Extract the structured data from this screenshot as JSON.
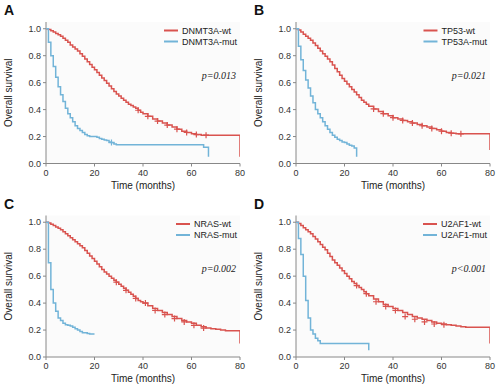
{
  "chart_data": [
    {
      "type": "step",
      "title": "A",
      "annotations": [
        "p=0.013"
      ],
      "xlabel": "Time (months)",
      "ylabel": "Overall survival",
      "xlim": [
        0,
        80
      ],
      "ylim": [
        0,
        1.05
      ],
      "xticks": [
        0,
        20,
        40,
        60,
        80
      ],
      "yticks": [
        {
          "value": 0.0,
          "label": "0.0"
        },
        0.2,
        0.4,
        0.6,
        0.8,
        {
          "value": 1.0,
          "label": "1.0"
        }
      ],
      "grid": false,
      "legend": "upper right",
      "series": [
        {
          "name": "DNMT3A-wt",
          "color": "#d9534f",
          "x": [
            0,
            1,
            2,
            3,
            4,
            5,
            6,
            7,
            8,
            9,
            10,
            11,
            12,
            13,
            14,
            15,
            16,
            17,
            18,
            19,
            20,
            21,
            22,
            23,
            24,
            25,
            26,
            27,
            28,
            29,
            30,
            31,
            32,
            33,
            34,
            35,
            36,
            37,
            38,
            39,
            40,
            42,
            44,
            46,
            48,
            50,
            52,
            54,
            56,
            58,
            60,
            62,
            64,
            66,
            68,
            70,
            72,
            74,
            76,
            78,
            80
          ],
          "values": [
            1.0,
            0.995,
            0.985,
            0.975,
            0.965,
            0.955,
            0.945,
            0.93,
            0.915,
            0.9,
            0.88,
            0.865,
            0.85,
            0.835,
            0.815,
            0.795,
            0.775,
            0.755,
            0.735,
            0.715,
            0.695,
            0.675,
            0.655,
            0.635,
            0.615,
            0.595,
            0.575,
            0.555,
            0.535,
            0.515,
            0.5,
            0.485,
            0.47,
            0.455,
            0.44,
            0.43,
            0.42,
            0.41,
            0.395,
            0.38,
            0.37,
            0.35,
            0.33,
            0.315,
            0.3,
            0.285,
            0.27,
            0.255,
            0.24,
            0.23,
            0.22,
            0.215,
            0.21,
            0.21,
            0.21,
            0.21,
            0.21,
            0.21,
            0.21,
            0.21,
            0.05
          ]
        },
        {
          "name": "DNMT3A-mut",
          "color": "#72b4d8",
          "x": [
            0,
            1,
            2,
            3,
            4,
            5,
            6,
            7,
            8,
            9,
            10,
            11,
            12,
            13,
            14,
            15,
            16,
            17,
            18,
            19,
            20,
            21,
            22,
            23,
            24,
            25,
            26,
            27,
            28,
            29,
            30,
            35,
            40,
            50,
            60,
            65,
            67
          ],
          "values": [
            1.0,
            0.9,
            0.8,
            0.72,
            0.64,
            0.57,
            0.51,
            0.46,
            0.41,
            0.37,
            0.34,
            0.31,
            0.28,
            0.26,
            0.245,
            0.23,
            0.215,
            0.205,
            0.2,
            0.2,
            0.2,
            0.195,
            0.185,
            0.18,
            0.175,
            0.17,
            0.16,
            0.155,
            0.145,
            0.14,
            0.14,
            0.14,
            0.14,
            0.14,
            0.14,
            0.12,
            0.05
          ]
        },
        {
          "type": "scatter",
          "marker": "plus",
          "color": "#d9534f",
          "x": [
            38,
            42,
            46,
            50,
            54,
            58,
            62,
            66
          ],
          "values": [
            0.395,
            0.35,
            0.315,
            0.285,
            0.255,
            0.23,
            0.215,
            0.21
          ]
        },
        {
          "type": "scatter",
          "marker": "plus",
          "color": "#72b4d8",
          "x": [
            27
          ],
          "values": [
            0.155
          ]
        }
      ]
    },
    {
      "type": "step",
      "title": "B",
      "annotations": [
        "p=0.021"
      ],
      "xlabel": "Time (months)",
      "ylabel": "Overall survival",
      "xlim": [
        0,
        80
      ],
      "ylim": [
        0,
        1.05
      ],
      "xticks": [
        0,
        20,
        40,
        60,
        80
      ],
      "yticks": [
        {
          "value": 0.0,
          "label": "0.0"
        },
        0.2,
        0.4,
        0.6,
        0.8,
        {
          "value": 1.0,
          "label": "1.0"
        }
      ],
      "grid": false,
      "legend": "upper right",
      "series": [
        {
          "name": "TP53-wt",
          "color": "#d9534f",
          "x": [
            0,
            1,
            2,
            3,
            4,
            5,
            6,
            7,
            8,
            9,
            10,
            11,
            12,
            13,
            14,
            15,
            16,
            17,
            18,
            19,
            20,
            21,
            22,
            23,
            24,
            25,
            26,
            27,
            28,
            29,
            30,
            32,
            34,
            36,
            38,
            40,
            42,
            44,
            46,
            48,
            50,
            52,
            54,
            56,
            58,
            60,
            62,
            64,
            66,
            68,
            70,
            72,
            74,
            76,
            78,
            80
          ],
          "values": [
            1.0,
            0.99,
            0.975,
            0.96,
            0.945,
            0.93,
            0.915,
            0.895,
            0.875,
            0.855,
            0.835,
            0.815,
            0.795,
            0.775,
            0.755,
            0.73,
            0.705,
            0.68,
            0.655,
            0.63,
            0.61,
            0.59,
            0.57,
            0.55,
            0.53,
            0.51,
            0.49,
            0.47,
            0.455,
            0.44,
            0.425,
            0.405,
            0.385,
            0.37,
            0.355,
            0.34,
            0.33,
            0.32,
            0.31,
            0.3,
            0.29,
            0.28,
            0.27,
            0.26,
            0.25,
            0.24,
            0.23,
            0.225,
            0.22,
            0.22,
            0.22,
            0.22,
            0.22,
            0.22,
            0.22,
            0.1
          ]
        },
        {
          "name": "TP53A-mut",
          "color": "#72b4d8",
          "x": [
            0,
            1,
            2,
            3,
            4,
            5,
            6,
            7,
            8,
            9,
            10,
            11,
            12,
            13,
            14,
            15,
            16,
            17,
            18,
            19,
            20,
            21,
            22,
            23,
            24,
            25
          ],
          "values": [
            1.0,
            0.87,
            0.77,
            0.69,
            0.62,
            0.56,
            0.5,
            0.45,
            0.4,
            0.37,
            0.34,
            0.31,
            0.28,
            0.255,
            0.23,
            0.21,
            0.195,
            0.18,
            0.17,
            0.16,
            0.155,
            0.145,
            0.135,
            0.13,
            0.115,
            0.05
          ]
        },
        {
          "type": "scatter",
          "marker": "plus",
          "color": "#d9534f",
          "x": [
            32,
            36,
            40,
            44,
            48,
            52,
            56,
            60,
            64,
            68
          ],
          "values": [
            0.405,
            0.37,
            0.34,
            0.32,
            0.3,
            0.28,
            0.26,
            0.24,
            0.225,
            0.22
          ]
        }
      ]
    },
    {
      "type": "step",
      "title": "C",
      "annotations": [
        "p=0.002"
      ],
      "xlabel": "Time (months)",
      "ylabel": "Overall survival",
      "xlim": [
        0,
        80
      ],
      "ylim": [
        0,
        1.05
      ],
      "xticks": [
        0,
        20,
        40,
        60,
        80
      ],
      "yticks": [
        {
          "value": 0.0,
          "label": "0.0"
        },
        0.2,
        0.4,
        0.6,
        0.8,
        {
          "value": 1.0,
          "label": "1.0"
        }
      ],
      "grid": false,
      "legend": "upper right",
      "series": [
        {
          "name": "NRAS-wt",
          "color": "#d9534f",
          "x": [
            0,
            1,
            2,
            3,
            4,
            5,
            6,
            7,
            8,
            9,
            10,
            11,
            12,
            13,
            14,
            15,
            16,
            17,
            18,
            19,
            20,
            21,
            22,
            23,
            24,
            25,
            26,
            27,
            28,
            29,
            30,
            31,
            32,
            33,
            34,
            35,
            36,
            37,
            38,
            39,
            40,
            42,
            44,
            46,
            48,
            50,
            52,
            54,
            56,
            58,
            60,
            62,
            64,
            66,
            68,
            70,
            72,
            74,
            76,
            78,
            80
          ],
          "values": [
            1.0,
            0.995,
            0.985,
            0.975,
            0.965,
            0.955,
            0.945,
            0.93,
            0.915,
            0.9,
            0.885,
            0.87,
            0.855,
            0.84,
            0.825,
            0.81,
            0.79,
            0.77,
            0.75,
            0.73,
            0.71,
            0.69,
            0.67,
            0.65,
            0.63,
            0.615,
            0.6,
            0.585,
            0.57,
            0.555,
            0.54,
            0.525,
            0.51,
            0.495,
            0.48,
            0.465,
            0.45,
            0.435,
            0.42,
            0.41,
            0.4,
            0.38,
            0.36,
            0.345,
            0.33,
            0.315,
            0.3,
            0.285,
            0.27,
            0.26,
            0.25,
            0.235,
            0.225,
            0.215,
            0.21,
            0.205,
            0.2,
            0.195,
            0.195,
            0.195,
            0.1
          ]
        },
        {
          "name": "NRAS-mut",
          "color": "#72b4d8",
          "x": [
            0,
            1,
            2,
            3,
            4,
            5,
            6,
            7,
            8,
            9,
            10,
            11,
            12,
            13,
            14,
            15,
            16,
            17,
            18,
            19,
            20
          ],
          "values": [
            1.0,
            0.7,
            0.5,
            0.4,
            0.34,
            0.29,
            0.27,
            0.25,
            0.24,
            0.235,
            0.23,
            0.22,
            0.21,
            0.2,
            0.19,
            0.18,
            0.18,
            0.175,
            0.17,
            0.17,
            0.17
          ]
        },
        {
          "type": "scatter",
          "marker": "plus",
          "color": "#d9534f",
          "x": [
            29,
            33,
            37,
            41,
            45,
            49,
            53,
            57,
            61,
            65
          ],
          "values": [
            0.555,
            0.495,
            0.435,
            0.4,
            0.345,
            0.315,
            0.285,
            0.26,
            0.235,
            0.215
          ]
        }
      ]
    },
    {
      "type": "step",
      "title": "D",
      "annotations": [
        "p<0.001"
      ],
      "xlabel": "Time (months)",
      "ylabel": "Overall survival",
      "xlim": [
        0,
        80
      ],
      "ylim": [
        0,
        1.05
      ],
      "xticks": [
        0,
        20,
        40,
        60,
        80
      ],
      "yticks": [
        {
          "value": 0.0,
          "label": "0.0"
        },
        0.2,
        0.4,
        0.6,
        0.8,
        {
          "value": 1.0,
          "label": "1.0"
        }
      ],
      "grid": false,
      "legend": "upper right",
      "series": [
        {
          "name": "U2AF1-wt",
          "color": "#d9534f",
          "x": [
            0,
            1,
            2,
            3,
            4,
            5,
            6,
            7,
            8,
            9,
            10,
            11,
            12,
            13,
            14,
            15,
            16,
            17,
            18,
            19,
            20,
            21,
            22,
            23,
            24,
            25,
            26,
            27,
            28,
            29,
            30,
            32,
            34,
            36,
            38,
            40,
            42,
            44,
            46,
            48,
            50,
            52,
            54,
            56,
            58,
            60,
            62,
            64,
            66,
            68,
            70,
            72,
            74,
            76,
            78,
            80
          ],
          "values": [
            1.0,
            0.99,
            0.975,
            0.96,
            0.945,
            0.93,
            0.915,
            0.895,
            0.875,
            0.855,
            0.835,
            0.815,
            0.795,
            0.77,
            0.745,
            0.72,
            0.7,
            0.68,
            0.66,
            0.64,
            0.62,
            0.6,
            0.58,
            0.56,
            0.545,
            0.53,
            0.515,
            0.5,
            0.485,
            0.47,
            0.455,
            0.43,
            0.41,
            0.39,
            0.375,
            0.36,
            0.345,
            0.33,
            0.315,
            0.3,
            0.29,
            0.28,
            0.27,
            0.26,
            0.25,
            0.245,
            0.24,
            0.235,
            0.23,
            0.225,
            0.22,
            0.22,
            0.22,
            0.22,
            0.22,
            0.1
          ]
        },
        {
          "name": "U2AF1-mut",
          "color": "#72b4d8",
          "x": [
            0,
            1,
            2,
            3,
            4,
            5,
            6,
            7,
            8,
            9,
            10,
            11,
            12,
            13,
            14,
            15,
            16,
            17,
            18,
            19,
            20,
            22,
            24,
            26,
            28,
            30
          ],
          "values": [
            1.0,
            0.88,
            0.76,
            0.6,
            0.42,
            0.29,
            0.2,
            0.17,
            0.14,
            0.12,
            0.1,
            0.1,
            0.1,
            0.1,
            0.1,
            0.1,
            0.1,
            0.1,
            0.1,
            0.1,
            0.1,
            0.1,
            0.1,
            0.1,
            0.1,
            0.05
          ]
        },
        {
          "type": "scatter",
          "marker": "plus",
          "color": "#d9534f",
          "x": [
            25,
            29,
            33,
            37,
            41,
            45,
            49,
            53,
            57,
            61
          ],
          "values": [
            0.53,
            0.47,
            0.41,
            0.375,
            0.345,
            0.3,
            0.28,
            0.26,
            0.245,
            0.24
          ]
        }
      ]
    }
  ]
}
